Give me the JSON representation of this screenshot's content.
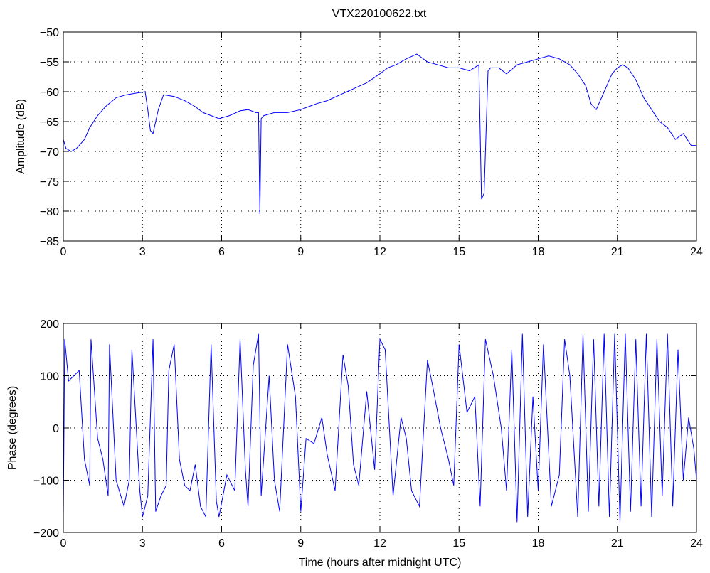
{
  "figure": {
    "title": "VTX220100622.txt",
    "line_color": "#0000ff"
  },
  "chart_data": [
    {
      "type": "line",
      "title": "VTX220100622.txt",
      "xlabel": "",
      "ylabel": "Amplitude (dB)",
      "xlim": [
        0,
        24
      ],
      "ylim": [
        -85,
        -50
      ],
      "xticks": [
        0,
        3,
        6,
        9,
        12,
        15,
        18,
        21,
        24
      ],
      "yticks": [
        -85,
        -80,
        -75,
        -70,
        -65,
        -60,
        -55,
        -50
      ],
      "grid": true,
      "series": [
        {
          "color": "#0000ff",
          "x": [
            0,
            0.1,
            0.3,
            0.5,
            0.8,
            1.0,
            1.3,
            1.6,
            2.0,
            2.4,
            2.8,
            3.1,
            3.2,
            3.3,
            3.4,
            3.6,
            3.8,
            4.2,
            4.6,
            5.0,
            5.3,
            5.6,
            5.9,
            6.3,
            6.7,
            7.0,
            7.3,
            7.4,
            7.45,
            7.5,
            7.6,
            8.0,
            8.5,
            9.0,
            9.3,
            9.6,
            10.0,
            10.5,
            11.0,
            11.5,
            12.0,
            12.3,
            12.6,
            13.0,
            13.4,
            13.8,
            14.2,
            14.6,
            15.0,
            15.4,
            15.75,
            15.85,
            15.95,
            16.1,
            16.2,
            16.5,
            16.8,
            17.2,
            17.6,
            18.0,
            18.4,
            18.8,
            19.2,
            19.5,
            19.8,
            20.0,
            20.2,
            20.5,
            20.8,
            21.0,
            21.2,
            21.4,
            21.7,
            22.0,
            22.3,
            22.6,
            22.9,
            23.2,
            23.5,
            23.8,
            24.0
          ],
          "values": [
            -68,
            -69.5,
            -70,
            -69.5,
            -68,
            -66,
            -64,
            -62.5,
            -61,
            -60.5,
            -60.2,
            -60,
            -63,
            -66.5,
            -67,
            -63,
            -60.5,
            -60.8,
            -61.5,
            -62.5,
            -63.5,
            -64,
            -64.5,
            -64,
            -63.2,
            -63,
            -63.5,
            -63.5,
            -80.5,
            -64.5,
            -64,
            -63.5,
            -63.5,
            -63,
            -62.5,
            -62,
            -61.5,
            -60.5,
            -59.5,
            -58.5,
            -57,
            -56,
            -55.5,
            -54.5,
            -53.7,
            -55,
            -55.5,
            -56,
            -56,
            -56.5,
            -55.5,
            -78,
            -77,
            -56.5,
            -56,
            -56,
            -57,
            -55.5,
            -55,
            -54.5,
            -54,
            -54.5,
            -55.5,
            -57,
            -59,
            -62,
            -63,
            -60,
            -57,
            -56,
            -55.5,
            -56,
            -58,
            -61,
            -63,
            -65,
            -66,
            -68,
            -67,
            -69,
            -69
          ]
        }
      ]
    },
    {
      "type": "line",
      "title": "",
      "xlabel": "Time (hours after midnight UTC)",
      "ylabel": "Phase (degrees)",
      "xlim": [
        0,
        24
      ],
      "ylim": [
        -200,
        200
      ],
      "xticks": [
        0,
        3,
        6,
        9,
        12,
        15,
        18,
        21,
        24
      ],
      "yticks": [
        -200,
        -100,
        0,
        100,
        200
      ],
      "grid": true,
      "series": [
        {
          "color": "#0000ff",
          "x": [
            0,
            0.05,
            0.2,
            0.4,
            0.6,
            0.8,
            1.0,
            1.05,
            1.3,
            1.5,
            1.7,
            1.75,
            2.0,
            2.3,
            2.5,
            2.6,
            2.9,
            3.0,
            3.2,
            3.4,
            3.5,
            3.7,
            3.9,
            4.0,
            4.2,
            4.4,
            4.6,
            4.8,
            5.0,
            5.2,
            5.4,
            5.6,
            5.8,
            5.9,
            6.2,
            6.5,
            6.7,
            6.9,
            7.0,
            7.2,
            7.4,
            7.5,
            7.8,
            8.0,
            8.2,
            8.5,
            8.8,
            9.0,
            9.2,
            9.5,
            9.8,
            10.0,
            10.3,
            10.6,
            10.8,
            11.0,
            11.2,
            11.5,
            11.8,
            12.0,
            12.2,
            12.5,
            12.8,
            13.0,
            13.2,
            13.5,
            13.8,
            14.0,
            14.3,
            14.6,
            14.8,
            15.0,
            15.3,
            15.6,
            15.8,
            16.0,
            16.3,
            16.6,
            16.8,
            17.0,
            17.2,
            17.4,
            17.6,
            17.8,
            18.0,
            18.2,
            18.5,
            18.8,
            19.0,
            19.2,
            19.5,
            19.7,
            19.9,
            20.1,
            20.3,
            20.5,
            20.7,
            20.9,
            21.1,
            21.3,
            21.5,
            21.7,
            21.9,
            22.1,
            22.3,
            22.5,
            22.7,
            22.9,
            23.1,
            23.3,
            23.5,
            23.7,
            23.9,
            24.0
          ],
          "values": [
            -170,
            170,
            90,
            100,
            110,
            -60,
            -110,
            170,
            -20,
            -60,
            -130,
            160,
            -100,
            -150,
            -100,
            150,
            -120,
            -170,
            -130,
            170,
            -160,
            -130,
            -110,
            110,
            160,
            -60,
            -110,
            -120,
            -70,
            -150,
            -170,
            160,
            -140,
            -170,
            -90,
            -120,
            170,
            -80,
            -150,
            120,
            180,
            -130,
            100,
            -100,
            -160,
            160,
            60,
            -160,
            -20,
            -30,
            20,
            -50,
            -120,
            140,
            80,
            -70,
            -110,
            70,
            -80,
            170,
            150,
            -130,
            20,
            -20,
            -120,
            -150,
            130,
            80,
            0,
            -60,
            -110,
            160,
            30,
            60,
            -150,
            170,
            100,
            0,
            -120,
            150,
            -180,
            180,
            -170,
            60,
            -120,
            160,
            -150,
            -90,
            170,
            100,
            -170,
            180,
            -160,
            170,
            -150,
            180,
            -170,
            180,
            -180,
            180,
            -160,
            170,
            -150,
            180,
            -170,
            170,
            -130,
            180,
            -150,
            150,
            -100,
            20,
            -40,
            -100
          ]
        }
      ]
    }
  ]
}
